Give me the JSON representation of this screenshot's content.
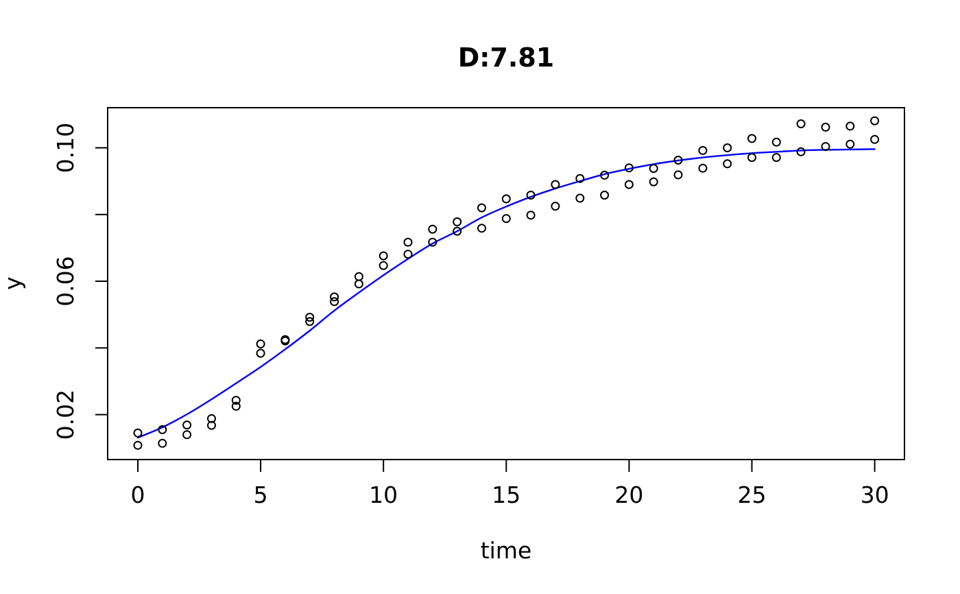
{
  "chart_data": {
    "type": "scatter",
    "title": "D:7.81",
    "xlabel": "time",
    "ylabel": "y",
    "xlim": [
      -1.25,
      31.25
    ],
    "ylim": [
      0.0065,
      0.112
    ],
    "x_ticks": [
      0,
      5,
      10,
      15,
      20,
      25,
      30
    ],
    "y_ticks": [
      {
        "value": 0.02,
        "label": "0.02"
      },
      {
        "value": 0.04,
        "label": ""
      },
      {
        "value": 0.06,
        "label": "0.06"
      },
      {
        "value": 0.08,
        "label": ""
      },
      {
        "value": 0.1,
        "label": "0.10"
      }
    ],
    "grid": false,
    "legend": "none",
    "point_style": {
      "shape": "open-circle",
      "color": "#000000",
      "radius_px": 5.5
    },
    "x": [
      0,
      1,
      2,
      3,
      4,
      5,
      6,
      7,
      8,
      9,
      10,
      11,
      12,
      13,
      14,
      15,
      16,
      17,
      18,
      19,
      20,
      21,
      22,
      23,
      24,
      25,
      26,
      27,
      28,
      29,
      30
    ],
    "series": [
      {
        "name": "observed-replicate-upper",
        "y": [
          0.0145,
          0.0155,
          0.0169,
          0.0188,
          0.0243,
          0.0412,
          0.0425,
          0.0492,
          0.0553,
          0.0614,
          0.0676,
          0.0717,
          0.0756,
          0.0778,
          0.082,
          0.0847,
          0.0858,
          0.089,
          0.0908,
          0.0918,
          0.094,
          0.0938,
          0.0963,
          0.0992,
          0.1,
          0.1028,
          0.1017,
          0.1072,
          0.1062,
          0.1065,
          0.1081
        ]
      },
      {
        "name": "observed-replicate-lower",
        "y": [
          0.0108,
          0.0114,
          0.014,
          0.0168,
          0.0225,
          0.0384,
          0.0421,
          0.0479,
          0.0539,
          0.0592,
          0.0647,
          0.0681,
          0.0717,
          0.075,
          0.0759,
          0.0788,
          0.0798,
          0.0825,
          0.0849,
          0.0858,
          0.089,
          0.0898,
          0.0919,
          0.0939,
          0.0952,
          0.0971,
          0.0971,
          0.0988,
          0.1004,
          0.1011,
          0.1025
        ]
      }
    ],
    "fit_curve": {
      "name": "model-fit-curve",
      "color": "#0000ff",
      "x": [
        0,
        1,
        2,
        3,
        4,
        5,
        6,
        7,
        8,
        9,
        10,
        11,
        12,
        13,
        14,
        15,
        16,
        17,
        18,
        19,
        20,
        21,
        22,
        23,
        24,
        25,
        26,
        27,
        28,
        29,
        30
      ],
      "y": [
        0.0131,
        0.0162,
        0.0201,
        0.0246,
        0.0294,
        0.0343,
        0.0396,
        0.0452,
        0.0512,
        0.0566,
        0.0618,
        0.0667,
        0.0713,
        0.075,
        0.0791,
        0.0824,
        0.0853,
        0.0878,
        0.09,
        0.0921,
        0.0937,
        0.0951,
        0.0962,
        0.0971,
        0.0978,
        0.0984,
        0.0988,
        0.0992,
        0.0994,
        0.0995,
        0.0996
      ]
    }
  },
  "colors": {
    "background": "#ffffff",
    "axis": "#000000",
    "points": "#000000",
    "curve": "#0000ff"
  }
}
